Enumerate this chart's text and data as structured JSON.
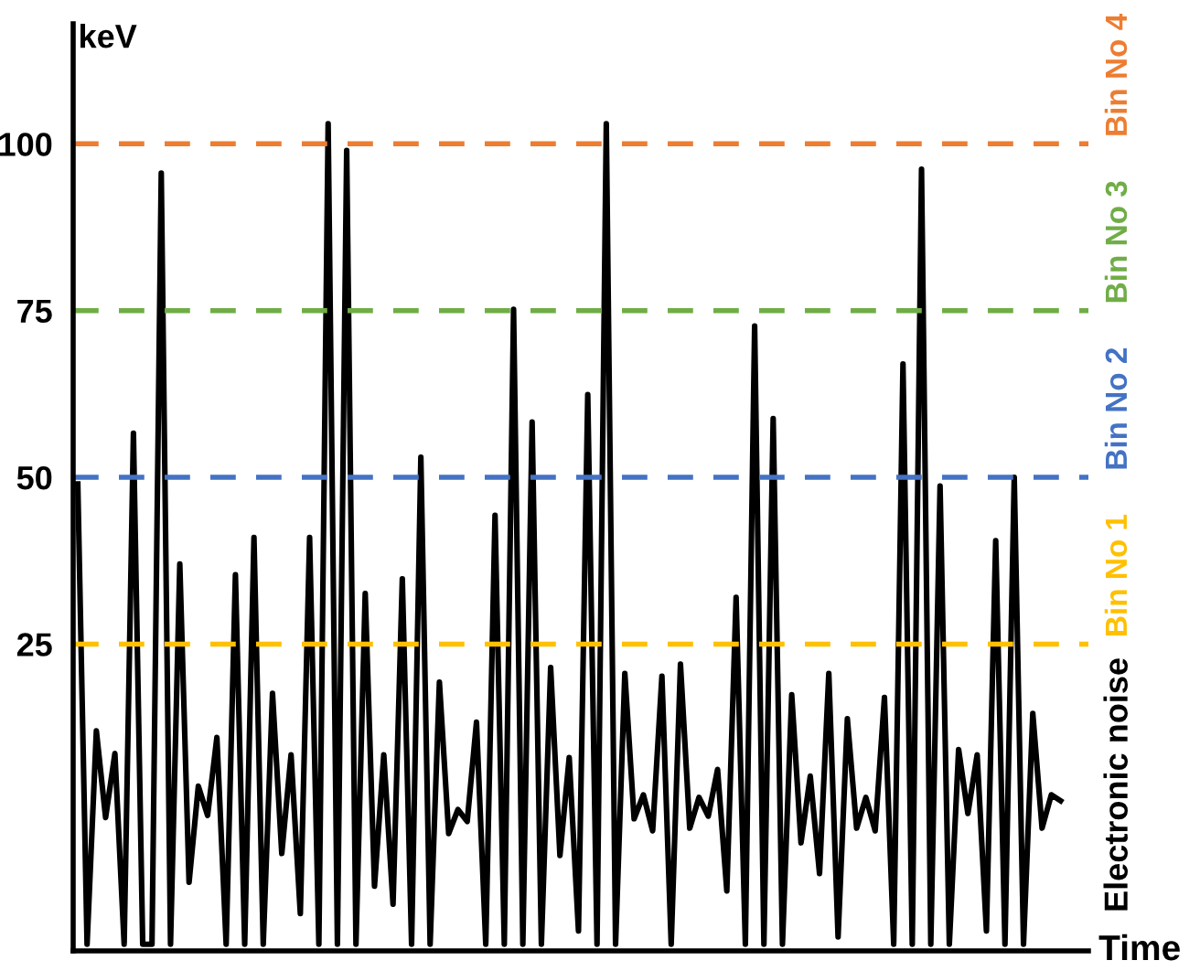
{
  "chart_data": {
    "type": "line",
    "xlabel": "Time",
    "ylabel": "keV",
    "ylim": [
      -21,
      118
    ],
    "yticks": [
      25,
      50,
      75,
      100
    ],
    "tick_labels": "y",
    "marker": "none",
    "line_style": "solid",
    "categories": [
      null,
      null,
      null,
      null,
      null,
      null,
      null,
      null,
      null,
      null,
      null,
      null,
      null,
      null,
      null,
      null,
      null,
      null,
      null,
      null,
      null,
      null,
      null,
      null,
      null,
      null,
      null,
      null,
      null,
      null,
      null,
      null,
      null,
      null,
      null,
      null,
      null,
      null,
      null,
      null,
      null,
      null,
      null,
      null,
      null,
      null,
      null,
      null,
      null,
      null,
      null,
      null,
      null,
      null,
      null,
      null,
      null,
      null,
      null,
      null,
      null,
      null,
      null,
      null,
      null,
      null,
      null,
      null,
      null,
      null,
      null,
      null,
      null,
      null,
      null,
      null,
      null,
      null,
      null,
      null,
      null,
      null,
      null,
      null,
      null,
      null,
      null,
      null,
      null,
      null,
      null,
      null,
      null,
      null,
      null,
      null,
      null,
      null,
      null,
      null,
      null,
      null,
      null,
      null,
      null,
      null,
      null
    ],
    "series": [
      {
        "color": "#000000",
        "values": [
          49,
          -20,
          12,
          -1,
          8.6,
          -20,
          56.6,
          -20,
          -20,
          95.6,
          -20,
          37,
          -10.7,
          3.7,
          -0.7,
          11,
          -20,
          35.4,
          -20,
          41,
          -20,
          17.6,
          -6.4,
          8.4,
          -15.4,
          41,
          -20,
          103,
          -20,
          99,
          -20,
          32.6,
          -11.3,
          8.4,
          -14,
          34.8,
          -20,
          53,
          -20,
          19.3,
          -3.4,
          0.2,
          -1.6,
          13.3,
          -20,
          44.3,
          -20,
          75.2,
          -20,
          58.3,
          -20,
          21.5,
          -6.7,
          8,
          -18,
          62.4,
          -20,
          103,
          -20,
          20.6,
          -1.2,
          2.4,
          -3,
          20.2,
          -20,
          22,
          -2.6,
          2,
          -0.8,
          6.2,
          -12,
          32,
          -20,
          72.7,
          -20,
          58.8,
          -20,
          17.4,
          -4.8,
          5.2,
          -9.4,
          20.6,
          -18.9,
          13.8,
          -2.6,
          2,
          -3,
          17,
          -20,
          67,
          -20,
          96.2,
          -20,
          48.7,
          -20,
          9.2,
          -0.4,
          8.4,
          -18,
          40.5,
          -20,
          50,
          -20,
          14.6,
          -2.6,
          2.4,
          1.5
        ]
      }
    ],
    "ref_lines": [
      {
        "axis": "y",
        "value": 25,
        "label": "Bin No 1",
        "color": "#ffc000",
        "line_style": "dashed"
      },
      {
        "axis": "y",
        "value": 50,
        "label": "Bin No 2",
        "color": "#4472c4",
        "line_style": "dashed"
      },
      {
        "axis": "y",
        "value": 75,
        "label": "Bin No 3",
        "color": "#70ad47",
        "line_style": "dashed"
      },
      {
        "axis": "y",
        "value": 100,
        "label": "Bin No 4",
        "color": "#ed7d31",
        "line_style": "dashed"
      }
    ],
    "annotations": [
      "Electronic noise"
    ]
  }
}
